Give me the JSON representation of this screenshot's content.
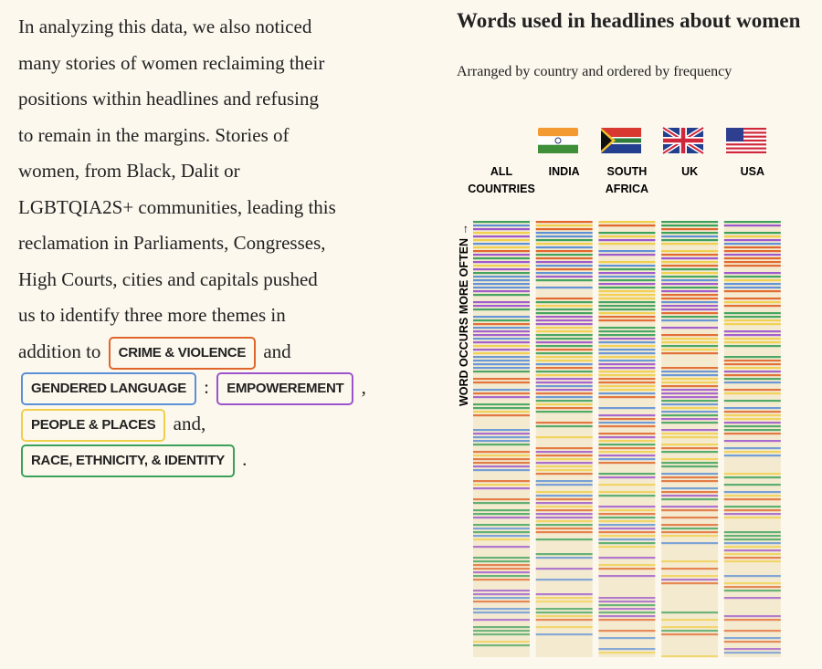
{
  "article": {
    "lines": [
      "In analyzing this data, we also noticed",
      "many stories of women reclaiming their",
      "positions within headlines and refusing",
      "to remain in the margins. Stories of",
      "women, from Black, Dalit or",
      "LGBTQIA2S+ communities, leading this",
      "reclamation in Parliaments, Congresses,",
      "High Courts, cities and capitals pushed",
      "us to identify three more themes in"
    ],
    "connectors": [
      "addition to",
      "and",
      ":",
      ",",
      "and,",
      "."
    ],
    "themes": [
      {
        "name": "CRIME & VIOLENCE",
        "color": "#e0652a"
      },
      {
        "name": "GENDERED LANGUAGE",
        "color": "#5b8fd6"
      },
      {
        "name": "EMPOWEREMENT",
        "color": "#9b55cc"
      },
      {
        "name": "PEOPLE & PLACES",
        "color": "#f0cf4a"
      },
      {
        "name": "RACE, ETHNICITY, & IDENTITY",
        "color": "#3aa05a"
      }
    ]
  },
  "figure": {
    "title": "Words used in headlines about women",
    "subtitle": "Arranged by country and ordered by frequency",
    "axis_label": "WORD OCCURS MORE OFTEN →",
    "columns": [
      {
        "line1": "ALL",
        "line2": "COUNTRIES"
      },
      {
        "line1": "INDIA"
      },
      {
        "line1": "SOUTH",
        "line2": "AFRICA"
      },
      {
        "line1": "UK"
      },
      {
        "line1": "USA"
      }
    ]
  }
}
